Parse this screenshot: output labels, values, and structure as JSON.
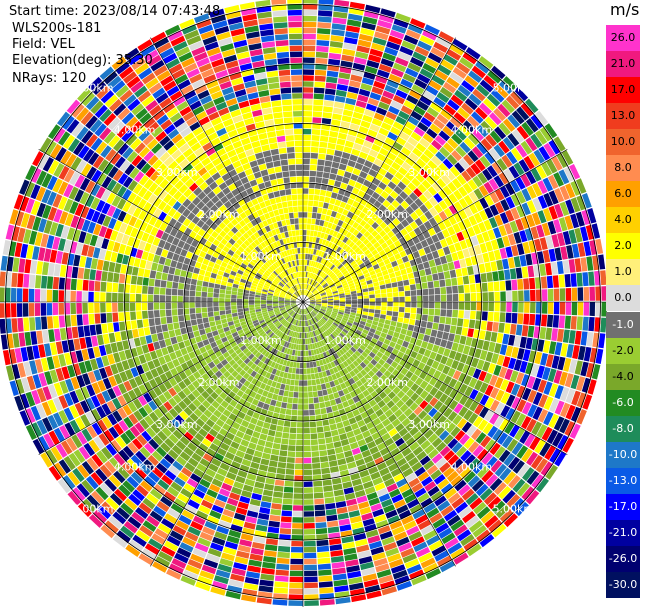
{
  "header": {
    "start_time": "Start time: 2023/08/14 07:43:48",
    "instrument": "WLS200s-181",
    "field": "Field: VEL",
    "elevation": "Elevation(deg): 35.30",
    "nrays": "NRays: 120"
  },
  "chart_data": {
    "type": "heatmap",
    "projection": "polar (PPI)",
    "field": "VEL",
    "unit": "m/s",
    "range_rings_km": [
      1.0,
      2.0,
      3.0,
      4.0,
      5.0
    ],
    "range_labels": [
      "1.00km",
      "2.00km",
      "3.00km",
      "4.00km",
      "5.00km"
    ],
    "nrays": 120,
    "colorbar": {
      "unit": "m/s",
      "ticks": [
        "26.0",
        "21.0",
        "17.0",
        "13.0",
        "10.0",
        "8.0",
        "6.0",
        "4.0",
        "2.0",
        "1.0",
        "0.0",
        "-1.0",
        "-2.0",
        "-4.0",
        "-6.0",
        "-8.0",
        "-10.0",
        "-13.0",
        "-17.0",
        "-21.0",
        "-26.0",
        "-30.0"
      ],
      "colors": [
        "#ff33cc",
        "#f0197f",
        "#ff0000",
        "#f03c1e",
        "#f0642d",
        "#ff8c50",
        "#ffa000",
        "#ffd000",
        "#ffff00",
        "#fff07a",
        "#dcdcdc",
        "#707070",
        "#9acd32",
        "#7aa82a",
        "#228b22",
        "#1e8c5a",
        "#1e78c8",
        "#0a5ae6",
        "#0000ff",
        "#0000a0",
        "#000070",
        "#001060"
      ]
    }
  }
}
